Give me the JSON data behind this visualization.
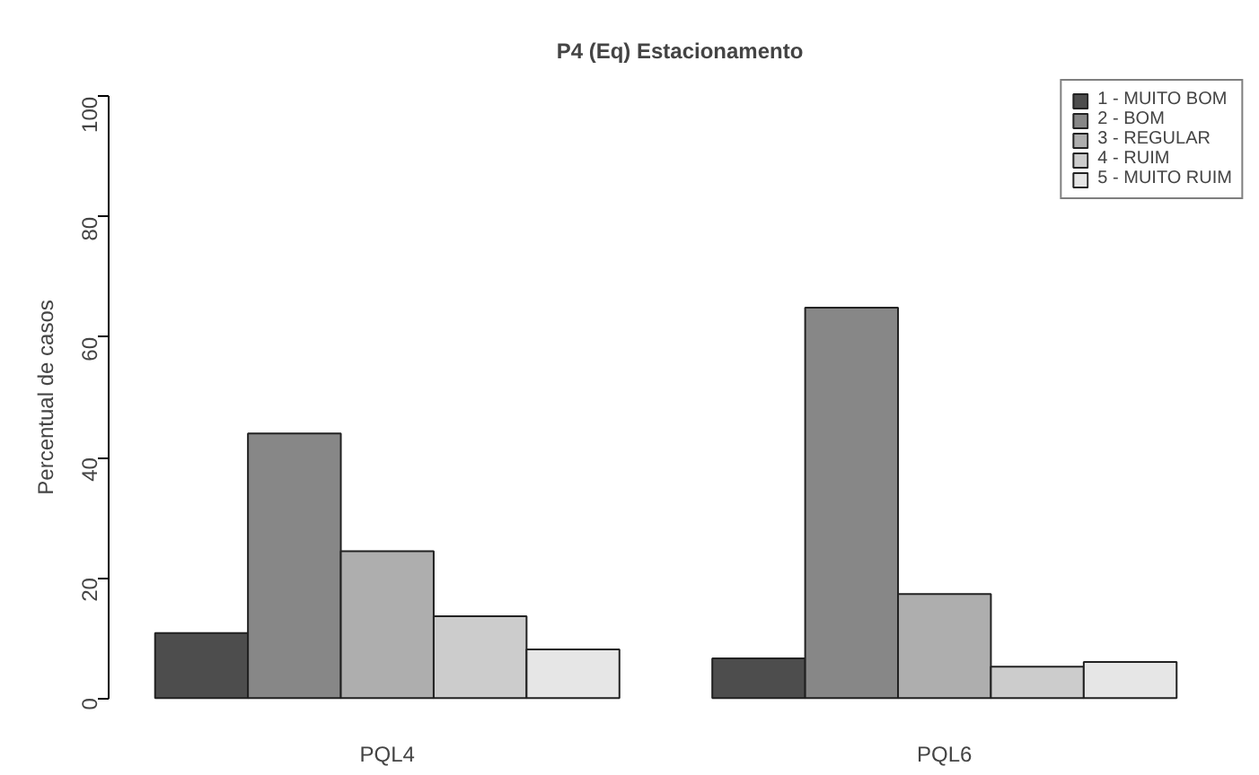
{
  "chart_data": {
    "type": "bar",
    "title": "P4 (Eq) Estacionamento",
    "ylabel": "Percentual de casos",
    "categories": [
      "PQL4",
      "PQL6"
    ],
    "series": [
      {
        "name": "1 - MUITO BOM",
        "color": "#4d4d4d",
        "values": [
          10.8,
          6.6
        ]
      },
      {
        "name": "2 - BOM",
        "color": "#878787",
        "values": [
          44.0,
          64.9
        ]
      },
      {
        "name": "3 - REGULAR",
        "color": "#aeaeae",
        "values": [
          24.4,
          17.3
        ]
      },
      {
        "name": "4 - RUIM",
        "color": "#cccccc",
        "values": [
          13.6,
          5.2
        ]
      },
      {
        "name": "5 - MUITO RUIM",
        "color": "#e6e6e6",
        "values": [
          8.1,
          6.0
        ]
      }
    ],
    "ylim": [
      0,
      100
    ],
    "yticks": [
      0,
      20,
      40,
      60,
      80,
      100
    ],
    "grid": false,
    "legend": "top right"
  }
}
